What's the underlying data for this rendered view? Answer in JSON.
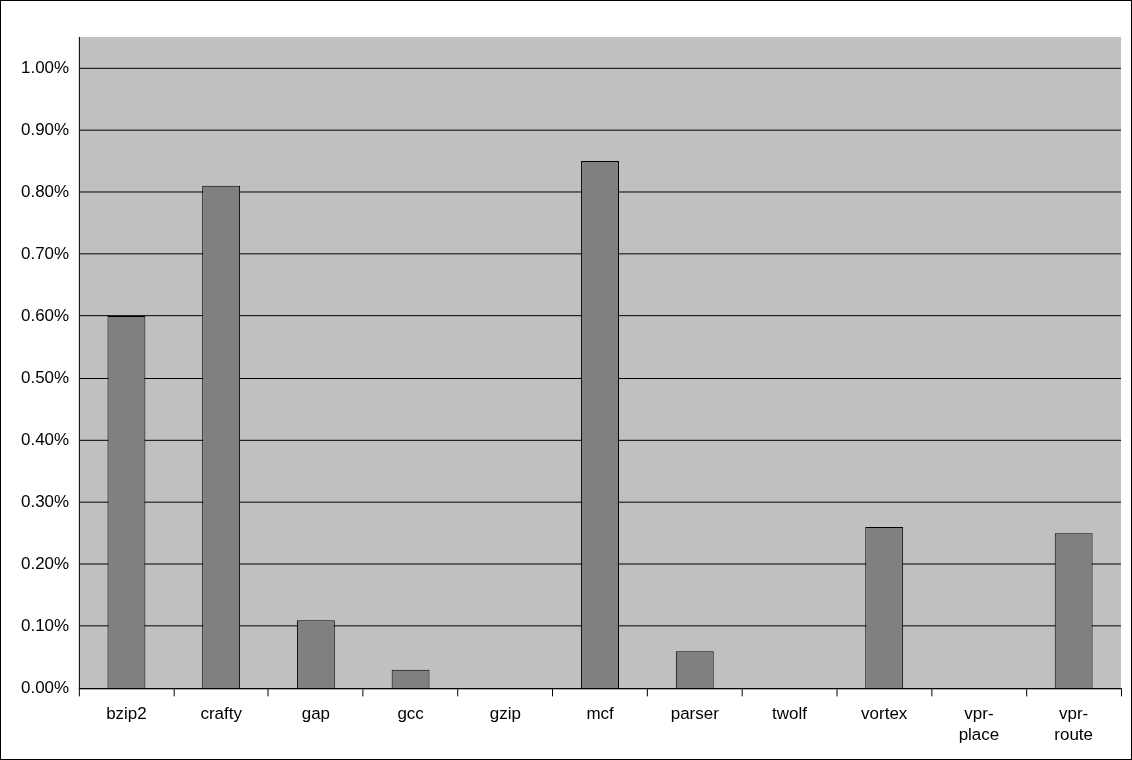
{
  "chart_data": {
    "type": "bar",
    "categories": [
      "bzip2",
      "crafty",
      "gap",
      "gcc",
      "gzip",
      "mcf",
      "parser",
      "twolf",
      "vortex",
      "vpr-place",
      "vpr-route"
    ],
    "values": [
      0.6,
      0.81,
      0.11,
      0.03,
      0,
      0.85,
      0.06,
      0,
      0.26,
      0,
      0.25
    ],
    "color": "#808080",
    "ylim": [
      0,
      1.05
    ],
    "yticks": [
      {
        "value": 0,
        "label": "0.00%"
      },
      {
        "value": 0.1,
        "label": "0.10%"
      },
      {
        "value": 0.2,
        "label": "0.20%"
      },
      {
        "value": 0.3,
        "label": "0.30%"
      },
      {
        "value": 0.4,
        "label": "0.40%"
      },
      {
        "value": 0.5,
        "label": "0.50%"
      },
      {
        "value": 0.6,
        "label": "0.60%"
      },
      {
        "value": 0.7,
        "label": "0.70%"
      },
      {
        "value": 0.8,
        "label": "0.80%"
      },
      {
        "value": 0.9,
        "label": "0.90%"
      },
      {
        "value": 1.0,
        "label": "1.00%"
      }
    ],
    "grid": "y",
    "legend": false
  }
}
